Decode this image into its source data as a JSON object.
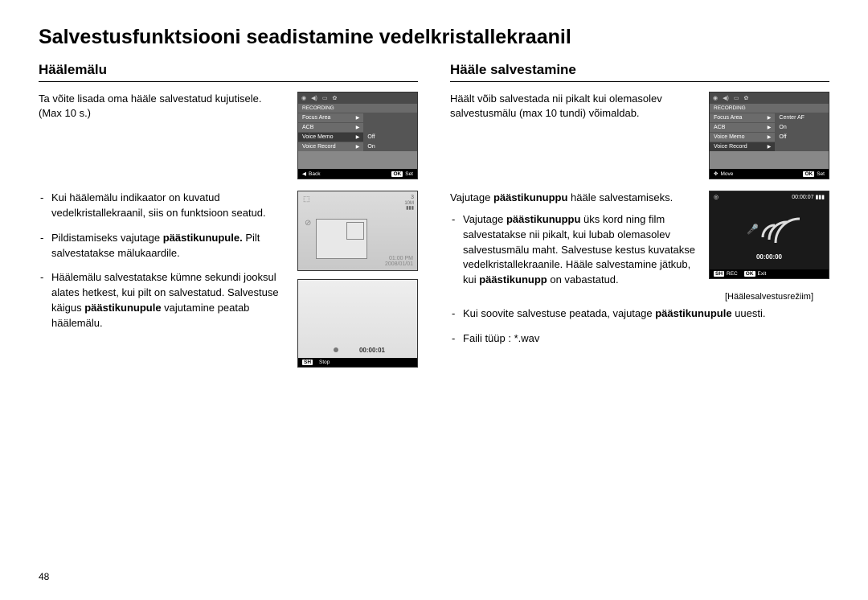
{
  "page": {
    "title": "Salvestusfunktsiooni seadistamine vedelkristallekraanil",
    "number": "48"
  },
  "left": {
    "heading": "Häälemälu",
    "intro1": "Ta võite lisada oma hääle salvestatud kujutisele.",
    "intro2": "(Max 10 s.)",
    "b1": "Kui häälemälu indikaator on kuvatud vedelkristallekraanil, siis on funktsioon seatud.",
    "b2a": "Pildistamiseks vajutage ",
    "b2b": "päästikunupule.",
    "b2c": " Pilt salvestatakse mälukaardile.",
    "b3a": "Häälemälu salvestatakse kümne sekundi jooksul alates hetkest, kui pilt on salvestatud. Salvestuse käigus ",
    "b3b": "päästikunupule",
    "b3c": " vajutamine peatab häälemälu."
  },
  "right": {
    "heading": "Hääle salvestamine",
    "intro1": "Häält võib salvestada nii pikalt kui olemasolev salvestusmälu (max 10 tundi) võimaldab.",
    "lead1": "Vajutage ",
    "lead2": "päästikunuppu",
    "lead3": " hääle salvestamiseks.",
    "b1a": "Vajutage ",
    "b1b": "päästikunuppu",
    "b1c": " üks kord ning film salvestatakse nii pikalt, kui lubab olemasolev salvestusmälu maht. Salvestuse kestus kuvatakse vedelkristallekraanile. Hääle salvestamine jätkub, kui ",
    "b1d": "päästikunupp",
    "b1e": " on vabastatud.",
    "b2a": "Kui soovite salvestuse peatada, vajutage ",
    "b2b": "päästikunupule",
    "b2c": " uuesti.",
    "b3": "Faili tüüp : *.wav",
    "caption": "[Häälesalvestusrežiim]"
  },
  "lcd_left": {
    "header": "RECORDING",
    "rows": [
      {
        "label": "Focus Area",
        "value": ""
      },
      {
        "label": "ACB",
        "value": ""
      },
      {
        "label": "Voice Memo",
        "value": "Off"
      },
      {
        "label": "Voice Record",
        "value": "On"
      }
    ],
    "back": "Back",
    "ok": "OK",
    "set": "Set",
    "sel_index": 2
  },
  "lcd_right": {
    "header": "RECORDING",
    "rows": [
      {
        "label": "Focus Area",
        "value": "Center AF"
      },
      {
        "label": "ACB",
        "value": "On"
      },
      {
        "label": "Voice Memo",
        "value": "Off"
      },
      {
        "label": "Voice Record",
        "value": ""
      }
    ],
    "move": "Move",
    "ok": "OK",
    "set": "Set",
    "sel_index": 3
  },
  "photo": {
    "count": "3",
    "side": "10M",
    "time": "01:00 PM",
    "date": "2008/01/01"
  },
  "rec": {
    "time": "00:00:01",
    "sh": "SH",
    "stop": "Stop"
  },
  "voice": {
    "top_time": "00:00:07",
    "center_time": "00:00:00",
    "sh": "SH",
    "rec": "REC",
    "ok": "OK",
    "exit": "Exit"
  },
  "colors": {
    "menu_bg": "#6b6b6b",
    "menu_sel": "#3a3a3a"
  }
}
